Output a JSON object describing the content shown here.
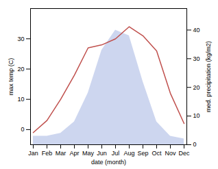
{
  "chart_data": {
    "type": "line",
    "categories": [
      "Jan",
      "Feb",
      "Mar",
      "Apr",
      "May",
      "Jun",
      "Jul",
      "Aug",
      "Sep",
      "Oct",
      "Nov",
      "Dec"
    ],
    "series": [
      {
        "type": "area",
        "axis": "y2",
        "color": "#b8c4e8",
        "values": [
          3,
          3,
          4,
          8,
          18,
          33,
          40,
          38,
          22,
          8,
          3,
          2
        ]
      },
      {
        "type": "line",
        "color": "#c0504d",
        "values": [
          -1,
          3,
          10,
          18,
          27,
          28,
          30,
          34,
          31,
          26,
          12,
          2
        ]
      }
    ],
    "xlabel": "date (month)",
    "ylabel": "max temp (C)",
    "y2label": "med. precipitation (kg/m2)",
    "ylim": [
      -5,
      40
    ],
    "yticks": [
      0,
      10,
      20,
      30
    ],
    "y2lim": [
      0,
      47.5
    ],
    "y2ticks": [
      0,
      10,
      20,
      30,
      40
    ],
    "grid": false
  }
}
